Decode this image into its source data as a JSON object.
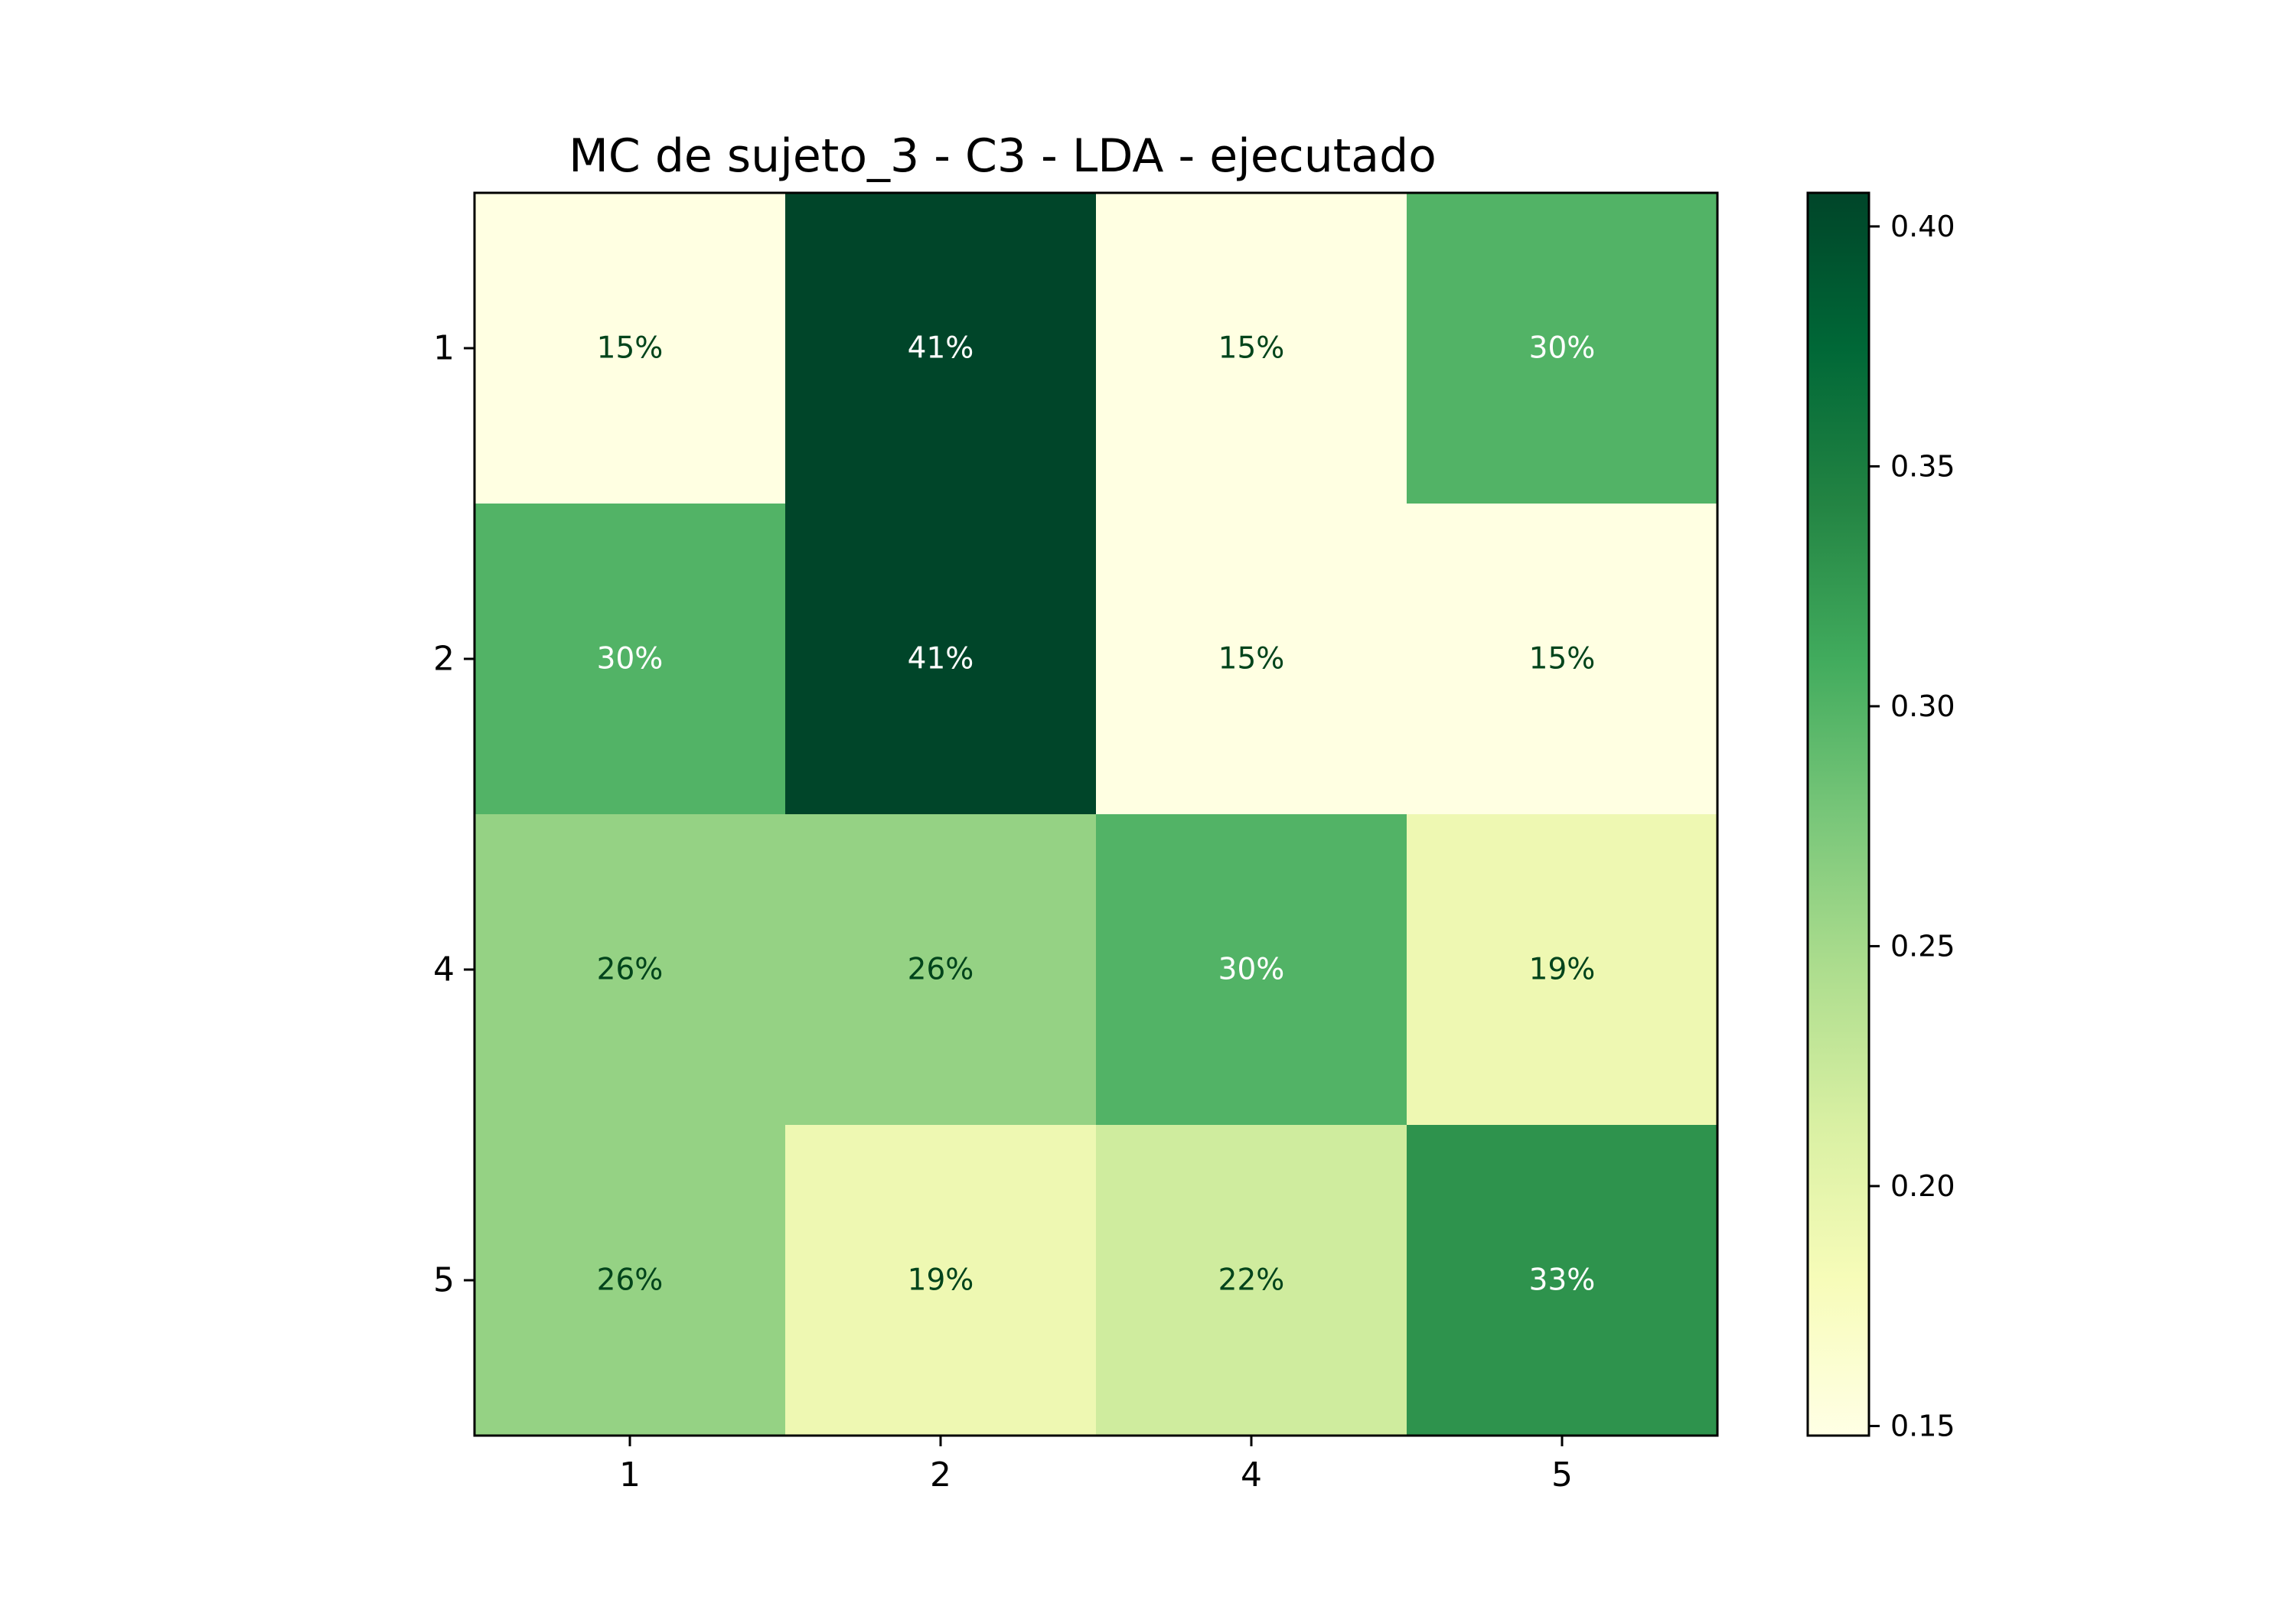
{
  "chart_data": {
    "type": "heatmap",
    "title": "MC de sujeto_3 - C3 - LDA - ejecutado",
    "x_categories": [
      "1",
      "2",
      "4",
      "5"
    ],
    "y_categories": [
      "1",
      "2",
      "4",
      "5"
    ],
    "values": [
      [
        0.15,
        0.41,
        0.15,
        0.3
      ],
      [
        0.3,
        0.41,
        0.15,
        0.15
      ],
      [
        0.26,
        0.26,
        0.3,
        0.19
      ],
      [
        0.26,
        0.19,
        0.22,
        0.33
      ]
    ],
    "labels": [
      [
        "15%",
        "41%",
        "15%",
        "30%"
      ],
      [
        "30%",
        "41%",
        "15%",
        "15%"
      ],
      [
        "26%",
        "26%",
        "30%",
        "19%"
      ],
      [
        "26%",
        "19%",
        "22%",
        "33%"
      ]
    ],
    "colormap": "YlGn",
    "colorbar": {
      "range": [
        0.148,
        0.407
      ],
      "ticks": [
        0.15,
        0.2,
        0.25,
        0.3,
        0.35,
        0.4
      ],
      "tick_labels": [
        "0.15",
        "0.20",
        "0.25",
        "0.30",
        "0.35",
        "0.40"
      ]
    },
    "xlabel": "",
    "ylabel": ""
  }
}
